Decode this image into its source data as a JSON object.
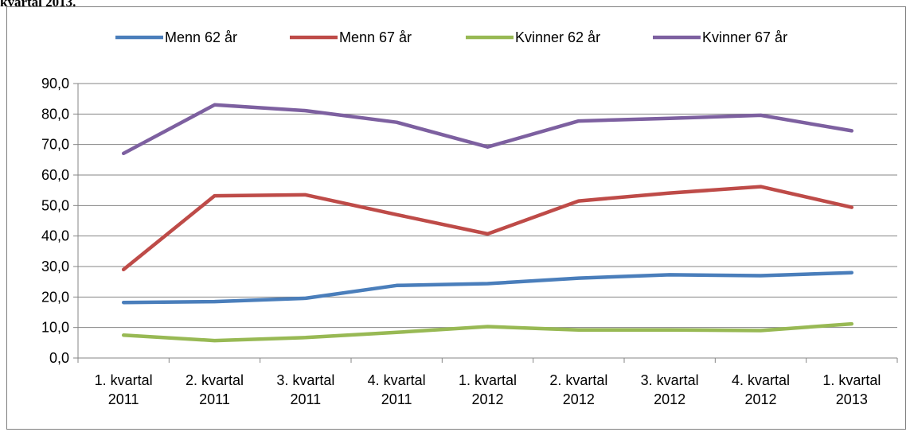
{
  "chart_data": {
    "type": "line",
    "title": "kvartal 2013.",
    "categories": [
      [
        "1. kvartal",
        "2011"
      ],
      [
        "2. kvartal",
        "2011"
      ],
      [
        "3. kvartal",
        "2011"
      ],
      [
        "4. kvartal",
        "2011"
      ],
      [
        "1. kvartal",
        "2012"
      ],
      [
        "2. kvartal",
        "2012"
      ],
      [
        "3. kvartal",
        "2012"
      ],
      [
        "4. kvartal",
        "2012"
      ],
      [
        "1. kvartal",
        "2013"
      ]
    ],
    "series": [
      {
        "name": "Menn 62 år",
        "color": "#4a7ebb",
        "values": [
          18.2,
          18.5,
          19.6,
          23.8,
          24.4,
          26.2,
          27.3,
          27.0,
          28.0
        ]
      },
      {
        "name": "Menn 67 år",
        "color": "#be4b48",
        "values": [
          29.0,
          53.2,
          53.5,
          47.0,
          40.7,
          51.5,
          54.1,
          56.2,
          49.4
        ]
      },
      {
        "name": "Kvinner 62 år",
        "color": "#98b954",
        "values": [
          7.5,
          5.7,
          6.7,
          8.4,
          10.3,
          9.2,
          9.2,
          9.0,
          11.2
        ]
      },
      {
        "name": "Kvinner 67 år",
        "color": "#7d60a0",
        "values": [
          67.1,
          83.0,
          81.1,
          77.3,
          69.2,
          77.7,
          78.6,
          79.6,
          74.5
        ]
      }
    ],
    "ylim": [
      0,
      90
    ],
    "yticks": [
      {
        "value": 0,
        "label": "0,0"
      },
      {
        "value": 10,
        "label": "10,0"
      },
      {
        "value": 20,
        "label": "20,0"
      },
      {
        "value": 30,
        "label": "30,0"
      },
      {
        "value": 40,
        "label": "40,0"
      },
      {
        "value": 50,
        "label": "50,0"
      },
      {
        "value": 60,
        "label": "60,0"
      },
      {
        "value": 70,
        "label": "70,0"
      },
      {
        "value": 80,
        "label": "80,0"
      },
      {
        "value": 90,
        "label": "90,0"
      }
    ],
    "grid": true,
    "legend": "top"
  }
}
